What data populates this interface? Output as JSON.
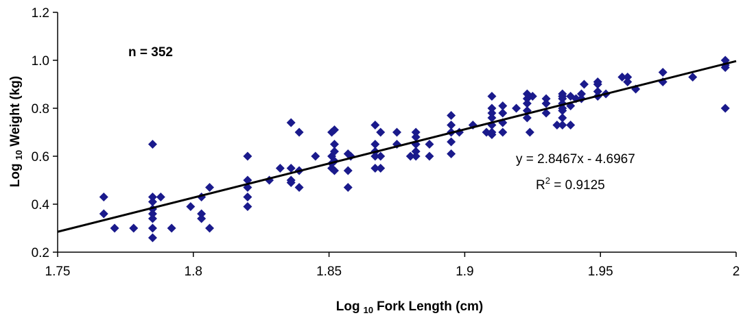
{
  "chart_data": {
    "type": "scatter",
    "xlabel": {
      "prefix": "Log",
      "sub": "10",
      "main": "Fork Length (cm)"
    },
    "ylabel": {
      "prefix": "Log",
      "sub": "10",
      "main": "Weight (kg)"
    },
    "xlim": [
      1.75,
      2
    ],
    "ylim": [
      0.2,
      1.2
    ],
    "xticks": [
      "1.75",
      "1.8",
      "1.85",
      "1.9",
      "1.95",
      "2"
    ],
    "yticks": [
      "0.2",
      "0.4",
      "0.6",
      "0.8",
      "1.0",
      "1.2"
    ],
    "grid": false,
    "marker_color": "#1a1a8c",
    "annotations": {
      "n_label": "n = 352",
      "equation": "y = 2.8467x - 4.6967",
      "r2_prefix": "R",
      "r2_sup": "2",
      "r2_value": " = 0.9125"
    },
    "trendline": {
      "slope": 2.8467,
      "intercept": -4.6967
    },
    "points": [
      [
        1.767,
        0.43
      ],
      [
        1.767,
        0.36
      ],
      [
        1.771,
        0.3
      ],
      [
        1.778,
        0.3
      ],
      [
        1.785,
        0.43
      ],
      [
        1.785,
        0.41
      ],
      [
        1.785,
        0.38
      ],
      [
        1.785,
        0.36
      ],
      [
        1.785,
        0.34
      ],
      [
        1.785,
        0.3
      ],
      [
        1.785,
        0.26
      ],
      [
        1.785,
        0.65
      ],
      [
        1.788,
        0.43
      ],
      [
        1.792,
        0.3
      ],
      [
        1.799,
        0.39
      ],
      [
        1.803,
        0.43
      ],
      [
        1.803,
        0.36
      ],
      [
        1.803,
        0.34
      ],
      [
        1.806,
        0.47
      ],
      [
        1.806,
        0.3
      ],
      [
        1.82,
        0.6
      ],
      [
        1.82,
        0.5
      ],
      [
        1.82,
        0.47
      ],
      [
        1.82,
        0.43
      ],
      [
        1.82,
        0.39
      ],
      [
        1.828,
        0.5
      ],
      [
        1.832,
        0.55
      ],
      [
        1.836,
        0.74
      ],
      [
        1.836,
        0.55
      ],
      [
        1.836,
        0.5
      ],
      [
        1.836,
        0.49
      ],
      [
        1.839,
        0.7
      ],
      [
        1.839,
        0.54
      ],
      [
        1.839,
        0.47
      ],
      [
        1.845,
        0.6
      ],
      [
        1.851,
        0.7
      ],
      [
        1.851,
        0.6
      ],
      [
        1.851,
        0.57
      ],
      [
        1.851,
        0.55
      ],
      [
        1.852,
        0.71
      ],
      [
        1.852,
        0.65
      ],
      [
        1.852,
        0.62
      ],
      [
        1.852,
        0.58
      ],
      [
        1.852,
        0.54
      ],
      [
        1.857,
        0.61
      ],
      [
        1.857,
        0.54
      ],
      [
        1.857,
        0.47
      ],
      [
        1.858,
        0.6
      ],
      [
        1.867,
        0.73
      ],
      [
        1.867,
        0.65
      ],
      [
        1.867,
        0.62
      ],
      [
        1.867,
        0.6
      ],
      [
        1.867,
        0.55
      ],
      [
        1.869,
        0.7
      ],
      [
        1.869,
        0.6
      ],
      [
        1.869,
        0.55
      ],
      [
        1.875,
        0.7
      ],
      [
        1.875,
        0.65
      ],
      [
        1.882,
        0.7
      ],
      [
        1.882,
        0.68
      ],
      [
        1.882,
        0.65
      ],
      [
        1.882,
        0.62
      ],
      [
        1.882,
        0.6
      ],
      [
        1.88,
        0.6
      ],
      [
        1.887,
        0.65
      ],
      [
        1.887,
        0.6
      ],
      [
        1.895,
        0.77
      ],
      [
        1.895,
        0.73
      ],
      [
        1.895,
        0.7
      ],
      [
        1.895,
        0.66
      ],
      [
        1.895,
        0.61
      ],
      [
        1.898,
        0.7
      ],
      [
        1.903,
        0.73
      ],
      [
        1.908,
        0.7
      ],
      [
        1.91,
        0.85
      ],
      [
        1.91,
        0.8
      ],
      [
        1.91,
        0.78
      ],
      [
        1.91,
        0.76
      ],
      [
        1.91,
        0.73
      ],
      [
        1.91,
        0.7
      ],
      [
        1.91,
        0.69
      ],
      [
        1.914,
        0.81
      ],
      [
        1.914,
        0.78
      ],
      [
        1.914,
        0.74
      ],
      [
        1.914,
        0.7
      ],
      [
        1.919,
        0.8
      ],
      [
        1.923,
        0.86
      ],
      [
        1.923,
        0.84
      ],
      [
        1.923,
        0.82
      ],
      [
        1.923,
        0.79
      ],
      [
        1.923,
        0.76
      ],
      [
        1.924,
        0.7
      ],
      [
        1.925,
        0.85
      ],
      [
        1.93,
        0.84
      ],
      [
        1.93,
        0.82
      ],
      [
        1.93,
        0.78
      ],
      [
        1.934,
        0.73
      ],
      [
        1.936,
        0.86
      ],
      [
        1.936,
        0.85
      ],
      [
        1.936,
        0.84
      ],
      [
        1.936,
        0.82
      ],
      [
        1.936,
        0.8
      ],
      [
        1.936,
        0.79
      ],
      [
        1.936,
        0.76
      ],
      [
        1.936,
        0.73
      ],
      [
        1.939,
        0.85
      ],
      [
        1.939,
        0.81
      ],
      [
        1.939,
        0.73
      ],
      [
        1.941,
        0.84
      ],
      [
        1.943,
        0.86
      ],
      [
        1.943,
        0.84
      ],
      [
        1.944,
        0.9
      ],
      [
        1.949,
        0.91
      ],
      [
        1.949,
        0.9
      ],
      [
        1.949,
        0.87
      ],
      [
        1.949,
        0.85
      ],
      [
        1.952,
        0.86
      ],
      [
        1.958,
        0.93
      ],
      [
        1.96,
        0.93
      ],
      [
        1.96,
        0.91
      ],
      [
        1.963,
        0.88
      ],
      [
        1.973,
        0.95
      ],
      [
        1.973,
        0.91
      ],
      [
        1.984,
        0.93
      ],
      [
        1.996,
        1.0
      ],
      [
        1.996,
        0.98
      ],
      [
        1.996,
        0.97
      ],
      [
        1.996,
        0.8
      ]
    ]
  }
}
